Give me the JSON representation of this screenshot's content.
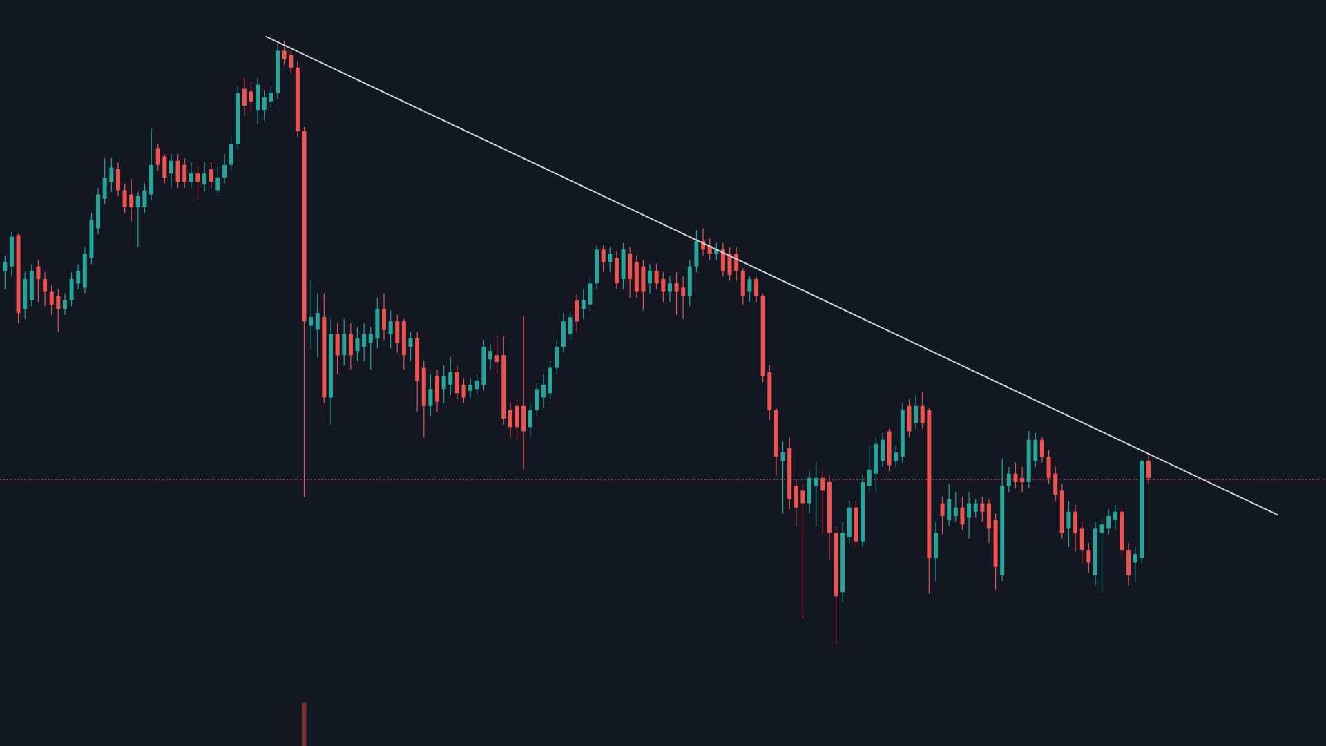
{
  "chart_data": {
    "type": "candlestick",
    "xlim": [
      -0.76,
      198.7
    ],
    "ylim": [
      0,
      882
    ],
    "up_color": "#26a69a",
    "down_color": "#ef5350",
    "candles": [
      {
        "open": 562,
        "high": 580,
        "low": 540,
        "close": 572
      },
      {
        "open": 567,
        "high": 608,
        "low": 555,
        "close": 602
      },
      {
        "open": 604,
        "high": 606,
        "low": 500,
        "close": 512
      },
      {
        "open": 517,
        "high": 560,
        "low": 505,
        "close": 552
      },
      {
        "open": 527,
        "high": 570,
        "low": 520,
        "close": 562
      },
      {
        "open": 567,
        "high": 575,
        "low": 525,
        "close": 552
      },
      {
        "open": 552,
        "high": 560,
        "low": 520,
        "close": 537
      },
      {
        "open": 537,
        "high": 545,
        "low": 510,
        "close": 522
      },
      {
        "open": 532,
        "high": 540,
        "low": 490,
        "close": 517
      },
      {
        "open": 517,
        "high": 535,
        "low": 510,
        "close": 527
      },
      {
        "open": 527,
        "high": 560,
        "low": 520,
        "close": 552
      },
      {
        "open": 547,
        "high": 570,
        "low": 540,
        "close": 562
      },
      {
        "open": 542,
        "high": 590,
        "low": 535,
        "close": 582
      },
      {
        "open": 577,
        "high": 630,
        "low": 570,
        "close": 622
      },
      {
        "open": 612,
        "high": 660,
        "low": 605,
        "close": 652
      },
      {
        "open": 647,
        "high": 695,
        "low": 640,
        "close": 672
      },
      {
        "open": 667,
        "high": 695,
        "low": 655,
        "close": 684
      },
      {
        "open": 682,
        "high": 690,
        "low": 650,
        "close": 657
      },
      {
        "open": 657,
        "high": 665,
        "low": 630,
        "close": 637
      },
      {
        "open": 652,
        "high": 670,
        "low": 620,
        "close": 637
      },
      {
        "open": 637,
        "high": 655,
        "low": 590,
        "close": 650
      },
      {
        "open": 637,
        "high": 665,
        "low": 630,
        "close": 657
      },
      {
        "open": 652,
        "high": 730,
        "low": 645,
        "close": 687
      },
      {
        "open": 707,
        "high": 712,
        "low": 680,
        "close": 687
      },
      {
        "open": 697,
        "high": 700,
        "low": 665,
        "close": 672
      },
      {
        "open": 677,
        "high": 700,
        "low": 660,
        "close": 692
      },
      {
        "open": 692,
        "high": 700,
        "low": 660,
        "close": 667
      },
      {
        "open": 687,
        "high": 695,
        "low": 660,
        "close": 667
      },
      {
        "open": 667,
        "high": 690,
        "low": 660,
        "close": 677
      },
      {
        "open": 677,
        "high": 685,
        "low": 645,
        "close": 667
      },
      {
        "open": 664,
        "high": 690,
        "low": 655,
        "close": 677
      },
      {
        "open": 682,
        "high": 690,
        "low": 660,
        "close": 667
      },
      {
        "open": 657,
        "high": 685,
        "low": 650,
        "close": 672
      },
      {
        "open": 672,
        "high": 700,
        "low": 665,
        "close": 687
      },
      {
        "open": 687,
        "high": 720,
        "low": 680,
        "close": 712
      },
      {
        "open": 712,
        "high": 780,
        "low": 705,
        "close": 772
      },
      {
        "open": 777,
        "high": 790,
        "low": 745,
        "close": 757
      },
      {
        "open": 774,
        "high": 785,
        "low": 750,
        "close": 762
      },
      {
        "open": 752,
        "high": 790,
        "low": 735,
        "close": 782
      },
      {
        "open": 752,
        "high": 775,
        "low": 740,
        "close": 767
      },
      {
        "open": 762,
        "high": 780,
        "low": 755,
        "close": 772
      },
      {
        "open": 772,
        "high": 830,
        "low": 765,
        "close": 822
      },
      {
        "open": 822,
        "high": 834,
        "low": 805,
        "close": 812
      },
      {
        "open": 817,
        "high": 822,
        "low": 795,
        "close": 802
      },
      {
        "open": 802,
        "high": 810,
        "low": 720,
        "close": 727
      },
      {
        "open": 727,
        "high": 732,
        "low": 294,
        "close": 502
      },
      {
        "open": 497,
        "high": 550,
        "low": 470,
        "close": 507
      },
      {
        "open": 492,
        "high": 535,
        "low": 460,
        "close": 512
      },
      {
        "open": 507,
        "high": 535,
        "low": 405,
        "close": 412
      },
      {
        "open": 412,
        "high": 505,
        "low": 380,
        "close": 487
      },
      {
        "open": 487,
        "high": 500,
        "low": 440,
        "close": 462
      },
      {
        "open": 462,
        "high": 505,
        "low": 450,
        "close": 487
      },
      {
        "open": 487,
        "high": 500,
        "low": 445,
        "close": 462
      },
      {
        "open": 467,
        "high": 495,
        "low": 455,
        "close": 482
      },
      {
        "open": 472,
        "high": 500,
        "low": 455,
        "close": 487
      },
      {
        "open": 477,
        "high": 495,
        "low": 445,
        "close": 487
      },
      {
        "open": 482,
        "high": 530,
        "low": 470,
        "close": 517
      },
      {
        "open": 517,
        "high": 535,
        "low": 480,
        "close": 492
      },
      {
        "open": 487,
        "high": 515,
        "low": 470,
        "close": 502
      },
      {
        "open": 502,
        "high": 510,
        "low": 465,
        "close": 477
      },
      {
        "open": 502,
        "high": 505,
        "low": 445,
        "close": 462
      },
      {
        "open": 472,
        "high": 490,
        "low": 455,
        "close": 482
      },
      {
        "open": 482,
        "high": 490,
        "low": 395,
        "close": 432
      },
      {
        "open": 447,
        "high": 455,
        "low": 365,
        "close": 402
      },
      {
        "open": 402,
        "high": 440,
        "low": 390,
        "close": 422
      },
      {
        "open": 437,
        "high": 445,
        "low": 395,
        "close": 407
      },
      {
        "open": 422,
        "high": 450,
        "low": 405,
        "close": 437
      },
      {
        "open": 427,
        "high": 460,
        "low": 415,
        "close": 442
      },
      {
        "open": 442,
        "high": 450,
        "low": 410,
        "close": 417
      },
      {
        "open": 427,
        "high": 435,
        "low": 405,
        "close": 412
      },
      {
        "open": 420,
        "high": 435,
        "low": 412,
        "close": 427
      },
      {
        "open": 422,
        "high": 440,
        "low": 415,
        "close": 432
      },
      {
        "open": 427,
        "high": 480,
        "low": 420,
        "close": 472
      },
      {
        "open": 457,
        "high": 475,
        "low": 445,
        "close": 467
      },
      {
        "open": 462,
        "high": 485,
        "low": 440,
        "close": 454
      },
      {
        "open": 462,
        "high": 485,
        "low": 380,
        "close": 387
      },
      {
        "open": 397,
        "high": 405,
        "low": 365,
        "close": 377
      },
      {
        "open": 402,
        "high": 410,
        "low": 360,
        "close": 377
      },
      {
        "open": 402,
        "high": 509,
        "low": 327,
        "close": 372
      },
      {
        "open": 377,
        "high": 405,
        "low": 365,
        "close": 397
      },
      {
        "open": 397,
        "high": 430,
        "low": 390,
        "close": 422
      },
      {
        "open": 412,
        "high": 440,
        "low": 400,
        "close": 427
      },
      {
        "open": 417,
        "high": 455,
        "low": 410,
        "close": 447
      },
      {
        "open": 447,
        "high": 480,
        "low": 440,
        "close": 472
      },
      {
        "open": 472,
        "high": 512,
        "low": 465,
        "close": 502
      },
      {
        "open": 487,
        "high": 515,
        "low": 480,
        "close": 507
      },
      {
        "open": 527,
        "high": 535,
        "low": 490,
        "close": 502
      },
      {
        "open": 517,
        "high": 540,
        "low": 505,
        "close": 527
      },
      {
        "open": 522,
        "high": 555,
        "low": 515,
        "close": 547
      },
      {
        "open": 547,
        "high": 592,
        "low": 540,
        "close": 587
      },
      {
        "open": 587,
        "high": 592,
        "low": 560,
        "close": 572
      },
      {
        "open": 572,
        "high": 590,
        "low": 560,
        "close": 582
      },
      {
        "open": 577,
        "high": 585,
        "low": 540,
        "close": 547
      },
      {
        "open": 552,
        "high": 595,
        "low": 540,
        "close": 587
      },
      {
        "open": 582,
        "high": 590,
        "low": 530,
        "close": 552
      },
      {
        "open": 572,
        "high": 580,
        "low": 530,
        "close": 537
      },
      {
        "open": 567,
        "high": 575,
        "low": 515,
        "close": 537
      },
      {
        "open": 547,
        "high": 570,
        "low": 535,
        "close": 562
      },
      {
        "open": 562,
        "high": 570,
        "low": 540,
        "close": 547
      },
      {
        "open": 552,
        "high": 560,
        "low": 525,
        "close": 537
      },
      {
        "open": 537,
        "high": 555,
        "low": 525,
        "close": 547
      },
      {
        "open": 547,
        "high": 560,
        "low": 510,
        "close": 537
      },
      {
        "open": 542,
        "high": 555,
        "low": 505,
        "close": 532
      },
      {
        "open": 532,
        "high": 575,
        "low": 520,
        "close": 567
      },
      {
        "open": 567,
        "high": 610,
        "low": 560,
        "close": 597
      },
      {
        "open": 597,
        "high": 612,
        "low": 580,
        "close": 587
      },
      {
        "open": 592,
        "high": 600,
        "low": 575,
        "close": 582
      },
      {
        "open": 582,
        "high": 595,
        "low": 575,
        "close": 587
      },
      {
        "open": 587,
        "high": 595,
        "low": 555,
        "close": 562
      },
      {
        "open": 582,
        "high": 590,
        "low": 550,
        "close": 557
      },
      {
        "open": 582,
        "high": 590,
        "low": 550,
        "close": 562
      },
      {
        "open": 562,
        "high": 565,
        "low": 522,
        "close": 532
      },
      {
        "open": 537,
        "high": 555,
        "low": 525,
        "close": 552
      },
      {
        "open": 552,
        "high": 555,
        "low": 525,
        "close": 532
      },
      {
        "open": 532,
        "high": 535,
        "low": 430,
        "close": 437
      },
      {
        "open": 442,
        "high": 450,
        "low": 385,
        "close": 397
      },
      {
        "open": 397,
        "high": 400,
        "low": 320,
        "close": 342
      },
      {
        "open": 337,
        "high": 360,
        "low": 275,
        "close": 347
      },
      {
        "open": 352,
        "high": 365,
        "low": 280,
        "close": 292
      },
      {
        "open": 307,
        "high": 315,
        "low": 260,
        "close": 282
      },
      {
        "open": 302,
        "high": 310,
        "low": 152,
        "close": 287
      },
      {
        "open": 287,
        "high": 325,
        "low": 275,
        "close": 317
      },
      {
        "open": 307,
        "high": 335,
        "low": 260,
        "close": 317
      },
      {
        "open": 317,
        "high": 325,
        "low": 250,
        "close": 302
      },
      {
        "open": 312,
        "high": 320,
        "low": 220,
        "close": 252
      },
      {
        "open": 252,
        "high": 260,
        "low": 120,
        "close": 177
      },
      {
        "open": 182,
        "high": 265,
        "low": 170,
        "close": 252
      },
      {
        "open": 247,
        "high": 290,
        "low": 240,
        "close": 282
      },
      {
        "open": 282,
        "high": 290,
        "low": 235,
        "close": 242
      },
      {
        "open": 242,
        "high": 320,
        "low": 235,
        "close": 312
      },
      {
        "open": 307,
        "high": 355,
        "low": 300,
        "close": 327
      },
      {
        "open": 322,
        "high": 365,
        "low": 300,
        "close": 357
      },
      {
        "open": 337,
        "high": 370,
        "low": 330,
        "close": 362
      },
      {
        "open": 372,
        "high": 375,
        "low": 325,
        "close": 332
      },
      {
        "open": 337,
        "high": 355,
        "low": 330,
        "close": 347
      },
      {
        "open": 342,
        "high": 405,
        "low": 335,
        "close": 397
      },
      {
        "open": 402,
        "high": 410,
        "low": 365,
        "close": 372
      },
      {
        "open": 382,
        "high": 415,
        "low": 375,
        "close": 402
      },
      {
        "open": 402,
        "high": 418,
        "low": 375,
        "close": 382
      },
      {
        "open": 397,
        "high": 400,
        "low": 180,
        "close": 222
      },
      {
        "open": 222,
        "high": 265,
        "low": 195,
        "close": 252
      },
      {
        "open": 287,
        "high": 295,
        "low": 250,
        "close": 272
      },
      {
        "open": 267,
        "high": 310,
        "low": 260,
        "close": 292
      },
      {
        "open": 272,
        "high": 300,
        "low": 265,
        "close": 282
      },
      {
        "open": 282,
        "high": 295,
        "low": 255,
        "close": 262
      },
      {
        "open": 270,
        "high": 300,
        "low": 245,
        "close": 287
      },
      {
        "open": 277,
        "high": 292,
        "low": 270,
        "close": 287
      },
      {
        "open": 287,
        "high": 295,
        "low": 265,
        "close": 277
      },
      {
        "open": 287,
        "high": 292,
        "low": 240,
        "close": 257
      },
      {
        "open": 267,
        "high": 275,
        "low": 185,
        "close": 212
      },
      {
        "open": 202,
        "high": 340,
        "low": 195,
        "close": 307
      },
      {
        "open": 307,
        "high": 330,
        "low": 300,
        "close": 322
      },
      {
        "open": 322,
        "high": 335,
        "low": 305,
        "close": 312
      },
      {
        "open": 317,
        "high": 330,
        "low": 300,
        "close": 312
      },
      {
        "open": 312,
        "high": 372,
        "low": 305,
        "close": 362
      },
      {
        "open": 337,
        "high": 370,
        "low": 330,
        "close": 362
      },
      {
        "open": 362,
        "high": 365,
        "low": 335,
        "close": 342
      },
      {
        "open": 342,
        "high": 350,
        "low": 310,
        "close": 317
      },
      {
        "open": 322,
        "high": 330,
        "low": 290,
        "close": 297
      },
      {
        "open": 302,
        "high": 310,
        "low": 245,
        "close": 252
      },
      {
        "open": 257,
        "high": 290,
        "low": 235,
        "close": 277
      },
      {
        "open": 277,
        "high": 285,
        "low": 230,
        "close": 252
      },
      {
        "open": 257,
        "high": 265,
        "low": 215,
        "close": 232
      },
      {
        "open": 232,
        "high": 240,
        "low": 205,
        "close": 217
      },
      {
        "open": 202,
        "high": 265,
        "low": 190,
        "close": 257
      },
      {
        "open": 252,
        "high": 270,
        "low": 180,
        "close": 262
      },
      {
        "open": 257,
        "high": 280,
        "low": 250,
        "close": 272
      },
      {
        "open": 267,
        "high": 285,
        "low": 255,
        "close": 277
      },
      {
        "open": 277,
        "high": 282,
        "low": 222,
        "close": 232
      },
      {
        "open": 232,
        "high": 240,
        "low": 190,
        "close": 202
      },
      {
        "open": 217,
        "high": 235,
        "low": 195,
        "close": 227
      },
      {
        "open": 222,
        "high": 340,
        "low": 215,
        "close": 337
      },
      {
        "open": 337,
        "high": 345,
        "low": 310,
        "close": 317
      }
    ],
    "trendline": {
      "x": [
        39.2,
        191.5
      ],
      "y": [
        839,
        273
      ],
      "color": "#d1d4dc"
    },
    "price_line": {
      "value": 315,
      "color": "#ef5350"
    },
    "volume": {
      "index": 45,
      "value": 51,
      "color": "#7c2f31"
    }
  }
}
